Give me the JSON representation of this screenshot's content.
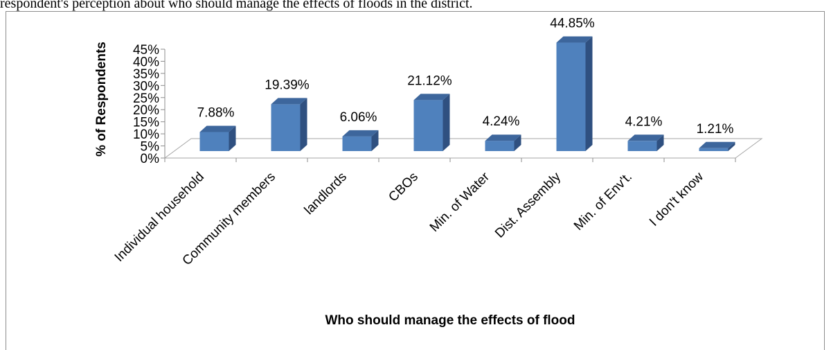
{
  "caption": "respondent's perception about who should manage the effects of floods in the district.",
  "chart_data": {
    "type": "bar",
    "style": "3d-column",
    "categories": [
      "Individual household",
      "Community members",
      "landlords",
      "CBOs",
      "Min. of Water",
      "Dist. Assembly",
      "Min. of Env't.",
      "I don't know"
    ],
    "values": [
      7.88,
      19.39,
      6.06,
      21.12,
      4.24,
      44.85,
      4.21,
      1.21
    ],
    "data_labels": [
      "7.88%",
      "19.39%",
      "6.06%",
      "21.12%",
      "4.24%",
      "44.85%",
      "4.21%",
      "1.21%"
    ],
    "title": "",
    "xlabel": "Who should manage the effects of flood",
    "ylabel": "% of Respondents",
    "ylim": [
      0,
      45
    ],
    "yticks": [
      "0%",
      "5%",
      "10%",
      "15%",
      "20%",
      "25%",
      "30%",
      "35%",
      "40%",
      "45%"
    ],
    "grid": false,
    "legend": "none",
    "colors": {
      "front": "#4f81bd",
      "side": "#2f5080",
      "top": "#3d669c"
    }
  }
}
